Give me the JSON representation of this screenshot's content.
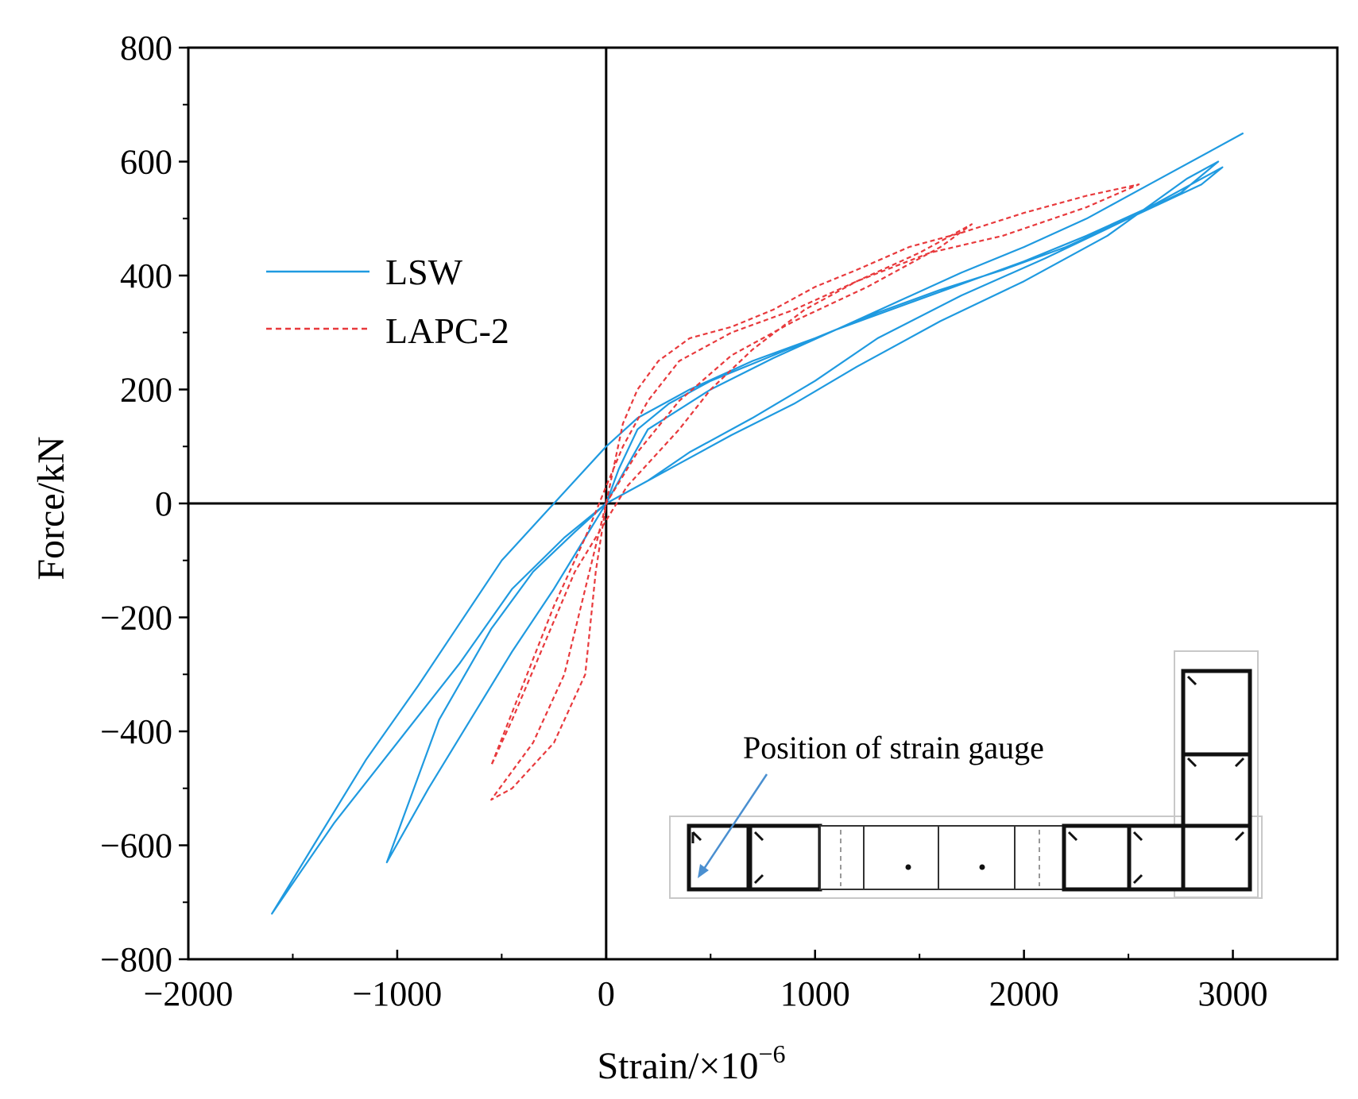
{
  "chart_data": {
    "type": "line",
    "title": "",
    "xlabel": "Strain/×10",
    "xlabel_sup": "−6",
    "ylabel": "Force/kN",
    "xlim": [
      -2000,
      3500
    ],
    "ylim": [
      -800,
      800
    ],
    "x_ticks": [
      -2000,
      -1000,
      0,
      1000,
      2000,
      3000
    ],
    "x_tick_labels": [
      "−2000",
      "−1000",
      "0",
      "1000",
      "2000",
      "3000"
    ],
    "y_ticks": [
      -800,
      -600,
      -400,
      -200,
      0,
      200,
      400,
      600,
      800
    ],
    "y_tick_labels": [
      "−800",
      "−600",
      "−400",
      "−200",
      "0",
      "200",
      "400",
      "600",
      "800"
    ],
    "grid": false,
    "legend": "left",
    "series": [
      {
        "name": "LSW",
        "color": "#1f9ae0",
        "dash": "solid",
        "x": [
          0,
          60,
          150,
          300,
          500,
          800,
          1100,
          1400,
          1700,
          2000,
          2300,
          2600,
          2800,
          2950,
          2850,
          2500,
          2100,
          1700,
          1300,
          1000,
          700,
          400,
          200,
          0,
          -200,
          -450,
          -700,
          -1000,
          -1300,
          -1600,
          -1400,
          -1150,
          -900,
          -700,
          -500,
          -300,
          -150,
          0,
          150,
          400,
          700,
          1000,
          1300,
          1600,
          1900,
          2200,
          2500,
          2750,
          2930,
          2780,
          2400,
          2000,
          1600,
          1200,
          900,
          600,
          350,
          150,
          0,
          -150,
          -350,
          -550,
          -800,
          -1050,
          -850,
          -650,
          -450,
          -250,
          -100,
          0,
          200,
          500,
          800,
          1100,
          1400,
          1700,
          2000,
          2300,
          2600,
          2900,
          3050
        ],
        "y": [
          0,
          60,
          130,
          175,
          215,
          260,
          305,
          345,
          385,
          425,
          470,
          520,
          560,
          590,
          560,
          500,
          430,
          365,
          290,
          215,
          150,
          90,
          40,
          0,
          -60,
          -150,
          -280,
          -420,
          -560,
          -720,
          -600,
          -450,
          -320,
          -210,
          -100,
          -20,
          40,
          100,
          150,
          200,
          250,
          290,
          335,
          375,
          410,
          450,
          500,
          545,
          600,
          570,
          470,
          390,
          320,
          240,
          175,
          120,
          70,
          30,
          0,
          -50,
          -120,
          -220,
          -380,
          -630,
          -500,
          -380,
          -260,
          -150,
          -60,
          0,
          130,
          200,
          255,
          305,
          355,
          405,
          450,
          500,
          560,
          620,
          650
        ]
      },
      {
        "name": "LAPC-2",
        "color": "#e8393c",
        "dash": "dashed",
        "x": [
          0,
          40,
          80,
          150,
          250,
          400,
          600,
          800,
          1000,
          1200,
          1450,
          1700,
          2000,
          2300,
          2550,
          2300,
          1900,
          1550,
          1200,
          900,
          600,
          350,
          200,
          80,
          0,
          -100,
          -250,
          -400,
          -550,
          -450,
          -300,
          -150,
          0,
          100,
          200,
          350,
          500,
          700,
          950,
          1200,
          1500,
          1750,
          1600,
          1250,
          900,
          600,
          350,
          150,
          0,
          -50,
          -100,
          -250,
          -450,
          -550,
          -350,
          -200,
          -100,
          0
        ],
        "y": [
          0,
          70,
          140,
          200,
          250,
          290,
          310,
          340,
          380,
          410,
          450,
          475,
          510,
          540,
          560,
          520,
          470,
          440,
          390,
          340,
          300,
          250,
          180,
          100,
          30,
          -60,
          -180,
          -320,
          -460,
          -380,
          -250,
          -120,
          -30,
          30,
          70,
          130,
          200,
          270,
          340,
          390,
          440,
          490,
          450,
          380,
          320,
          260,
          180,
          90,
          0,
          -120,
          -300,
          -420,
          -500,
          -520,
          -420,
          -300,
          -150,
          0
        ]
      }
    ],
    "inset": {
      "label": "Position of strain gauge"
    }
  }
}
